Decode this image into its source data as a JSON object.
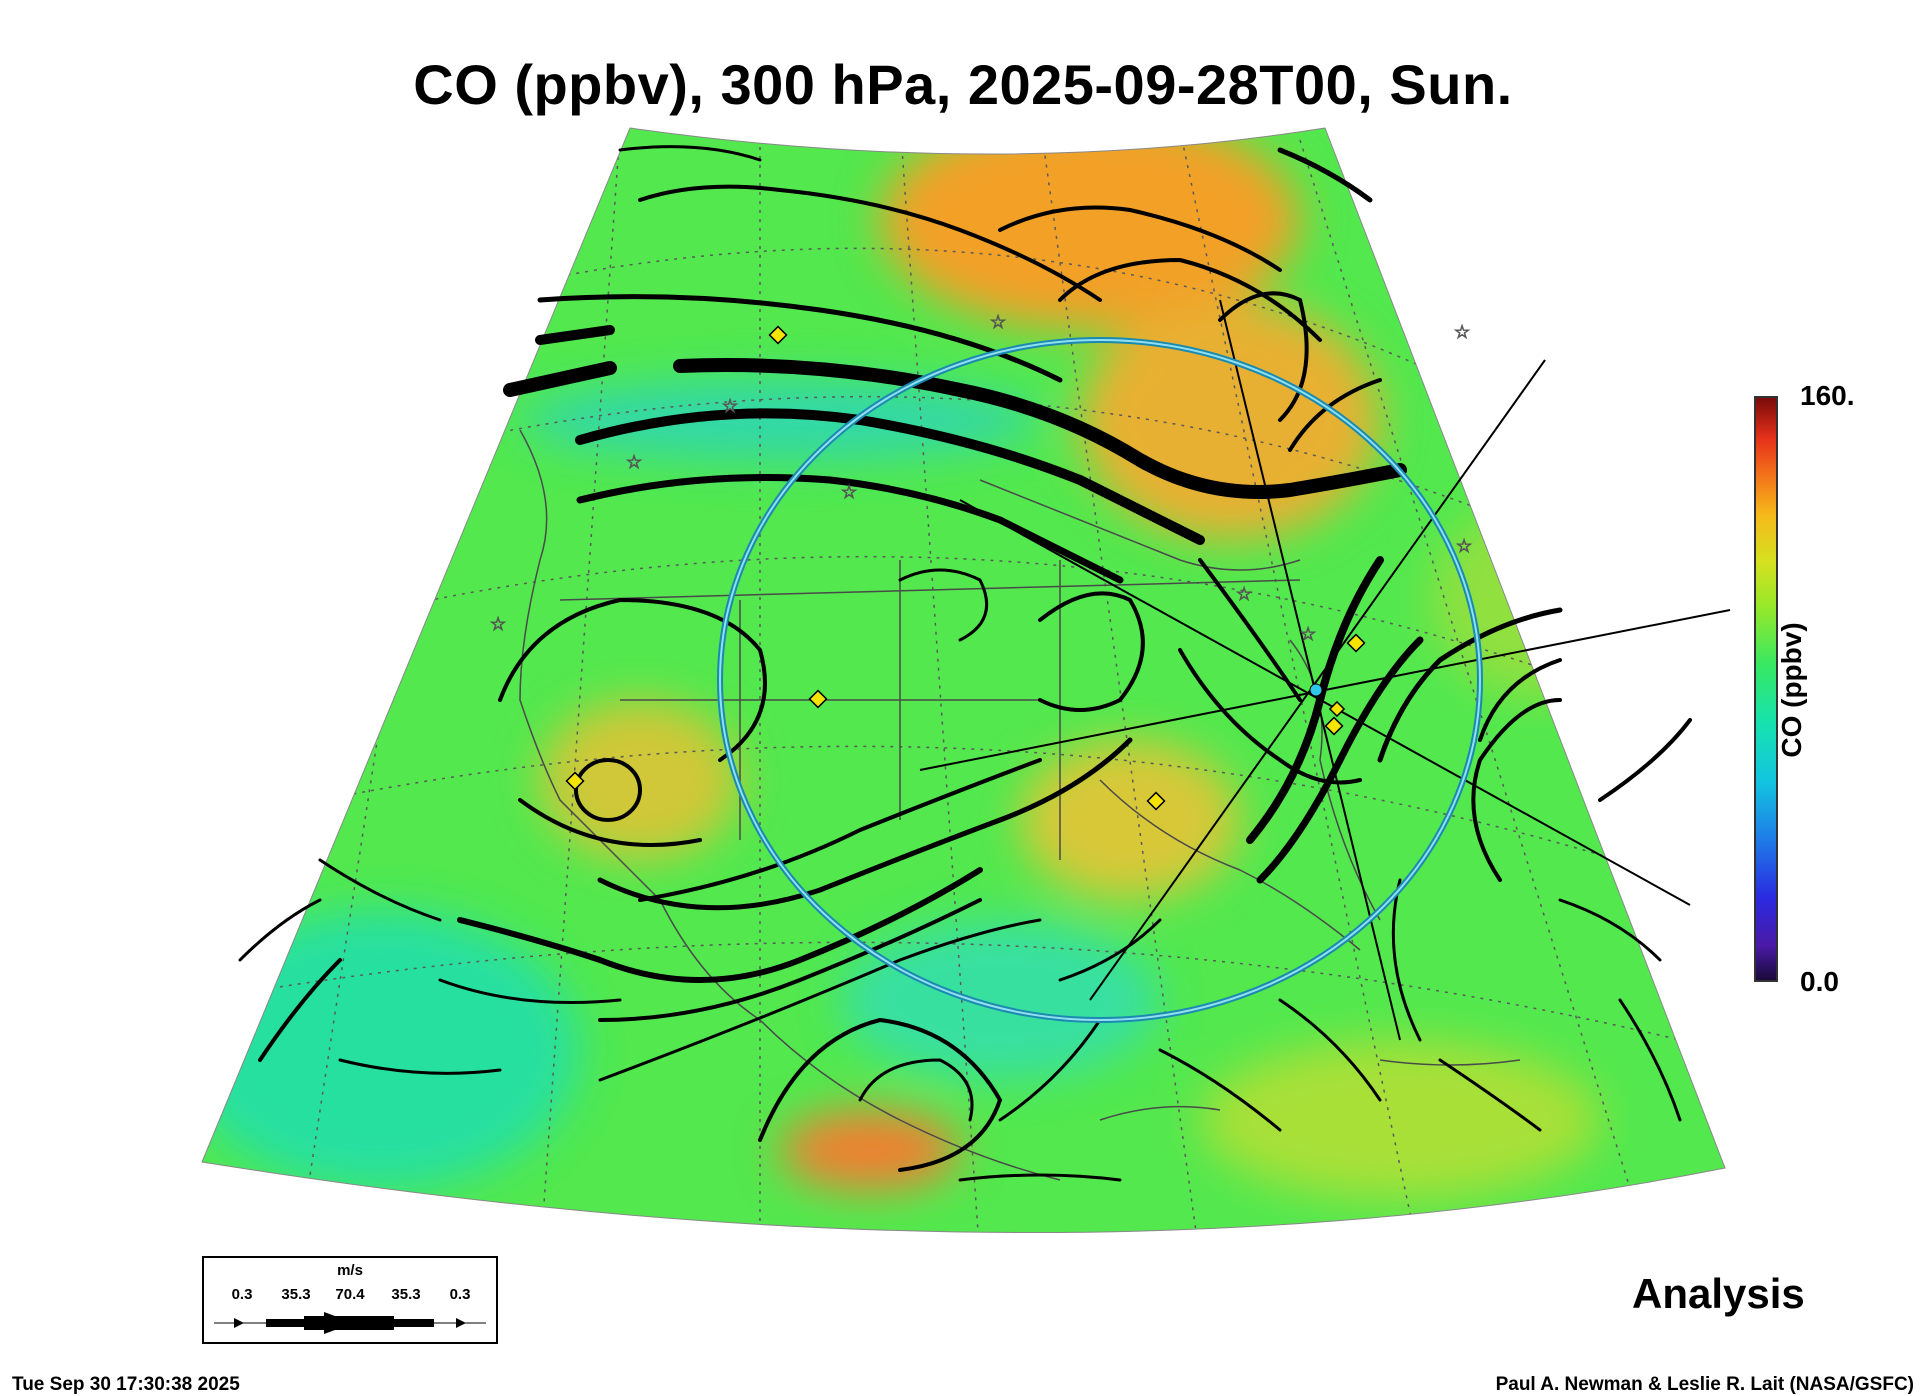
{
  "title": "CO (ppbv), 300 hPa, 2025-09-28T00, Sun.",
  "colorbar": {
    "label": "CO (ppbv)",
    "max_label": "160.",
    "min_label": "0.0"
  },
  "legend": {
    "unit": "m/s",
    "ticks": [
      "0.3",
      "35.3",
      "70.4",
      "35.3",
      "0.3"
    ]
  },
  "analysis_label": "Analysis",
  "footer": {
    "timestamp": "Tue Sep 30 17:30:38 2025",
    "credit": "Paul A. Newman & Leslie R. Lait (NASA/GSFC)"
  },
  "colors": {
    "field_base": "#4be84a",
    "field_high": "#f4a020",
    "streamline": "#000000",
    "range_ring": "#40b8d8",
    "site_marker": "#f4e400"
  },
  "markers": {
    "yellow_diamond_count": 7,
    "white_star_count": 9
  }
}
